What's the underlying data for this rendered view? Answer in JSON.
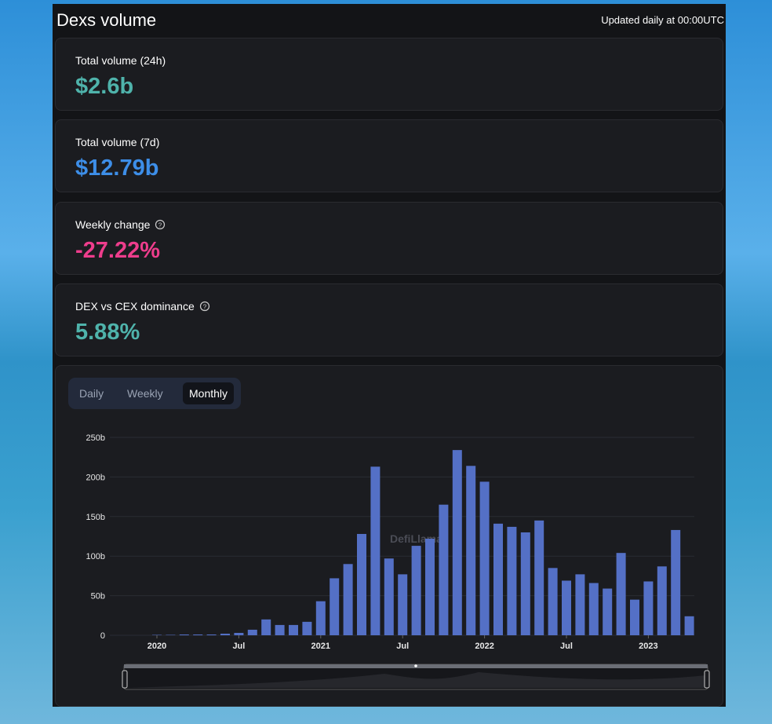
{
  "header": {
    "title": "Dexs volume",
    "note": "Updated daily at 00:00UTC"
  },
  "stats": [
    {
      "label": "Total volume (24h)",
      "value": "$2.6b"
    },
    {
      "label": "Total volume (7d)",
      "value": "$12.79b"
    },
    {
      "label": "Weekly change",
      "value": "-27.22%"
    },
    {
      "label": "DEX vs CEX dominance",
      "value": "5.88%"
    }
  ],
  "tabs": [
    "Daily",
    "Weekly",
    "Monthly"
  ],
  "chart_data": {
    "type": "bar",
    "color": "#5470c6",
    "watermark": "DefiLlama",
    "categories": [
      "2020",
      null,
      null,
      null,
      null,
      null,
      "Jul",
      null,
      null,
      null,
      null,
      null,
      "2021",
      null,
      null,
      null,
      null,
      null,
      "Jul",
      null,
      null,
      null,
      null,
      null,
      "2022",
      null,
      null,
      null,
      null,
      null,
      "Jul",
      null,
      null,
      null,
      null,
      null,
      "2023",
      null,
      null,
      null
    ],
    "values": [
      0.5,
      0.5,
      1,
      1,
      1,
      2,
      3,
      7,
      20,
      13,
      13,
      17,
      43,
      72,
      90,
      128,
      213,
      97,
      77,
      113,
      122,
      165,
      234,
      214,
      194,
      141,
      137,
      130,
      145,
      85,
      69,
      77,
      66,
      59,
      104,
      45,
      68,
      87,
      133,
      24
    ],
    "ylim": [
      0,
      250
    ],
    "yticks": [
      0,
      {
        "value": 50,
        "label": "50b"
      },
      {
        "value": 100,
        "label": "100b"
      },
      {
        "value": 150,
        "label": "150b"
      },
      {
        "value": 200,
        "label": "200b"
      },
      {
        "value": 250,
        "label": "250b"
      }
    ],
    "grid": true
  }
}
